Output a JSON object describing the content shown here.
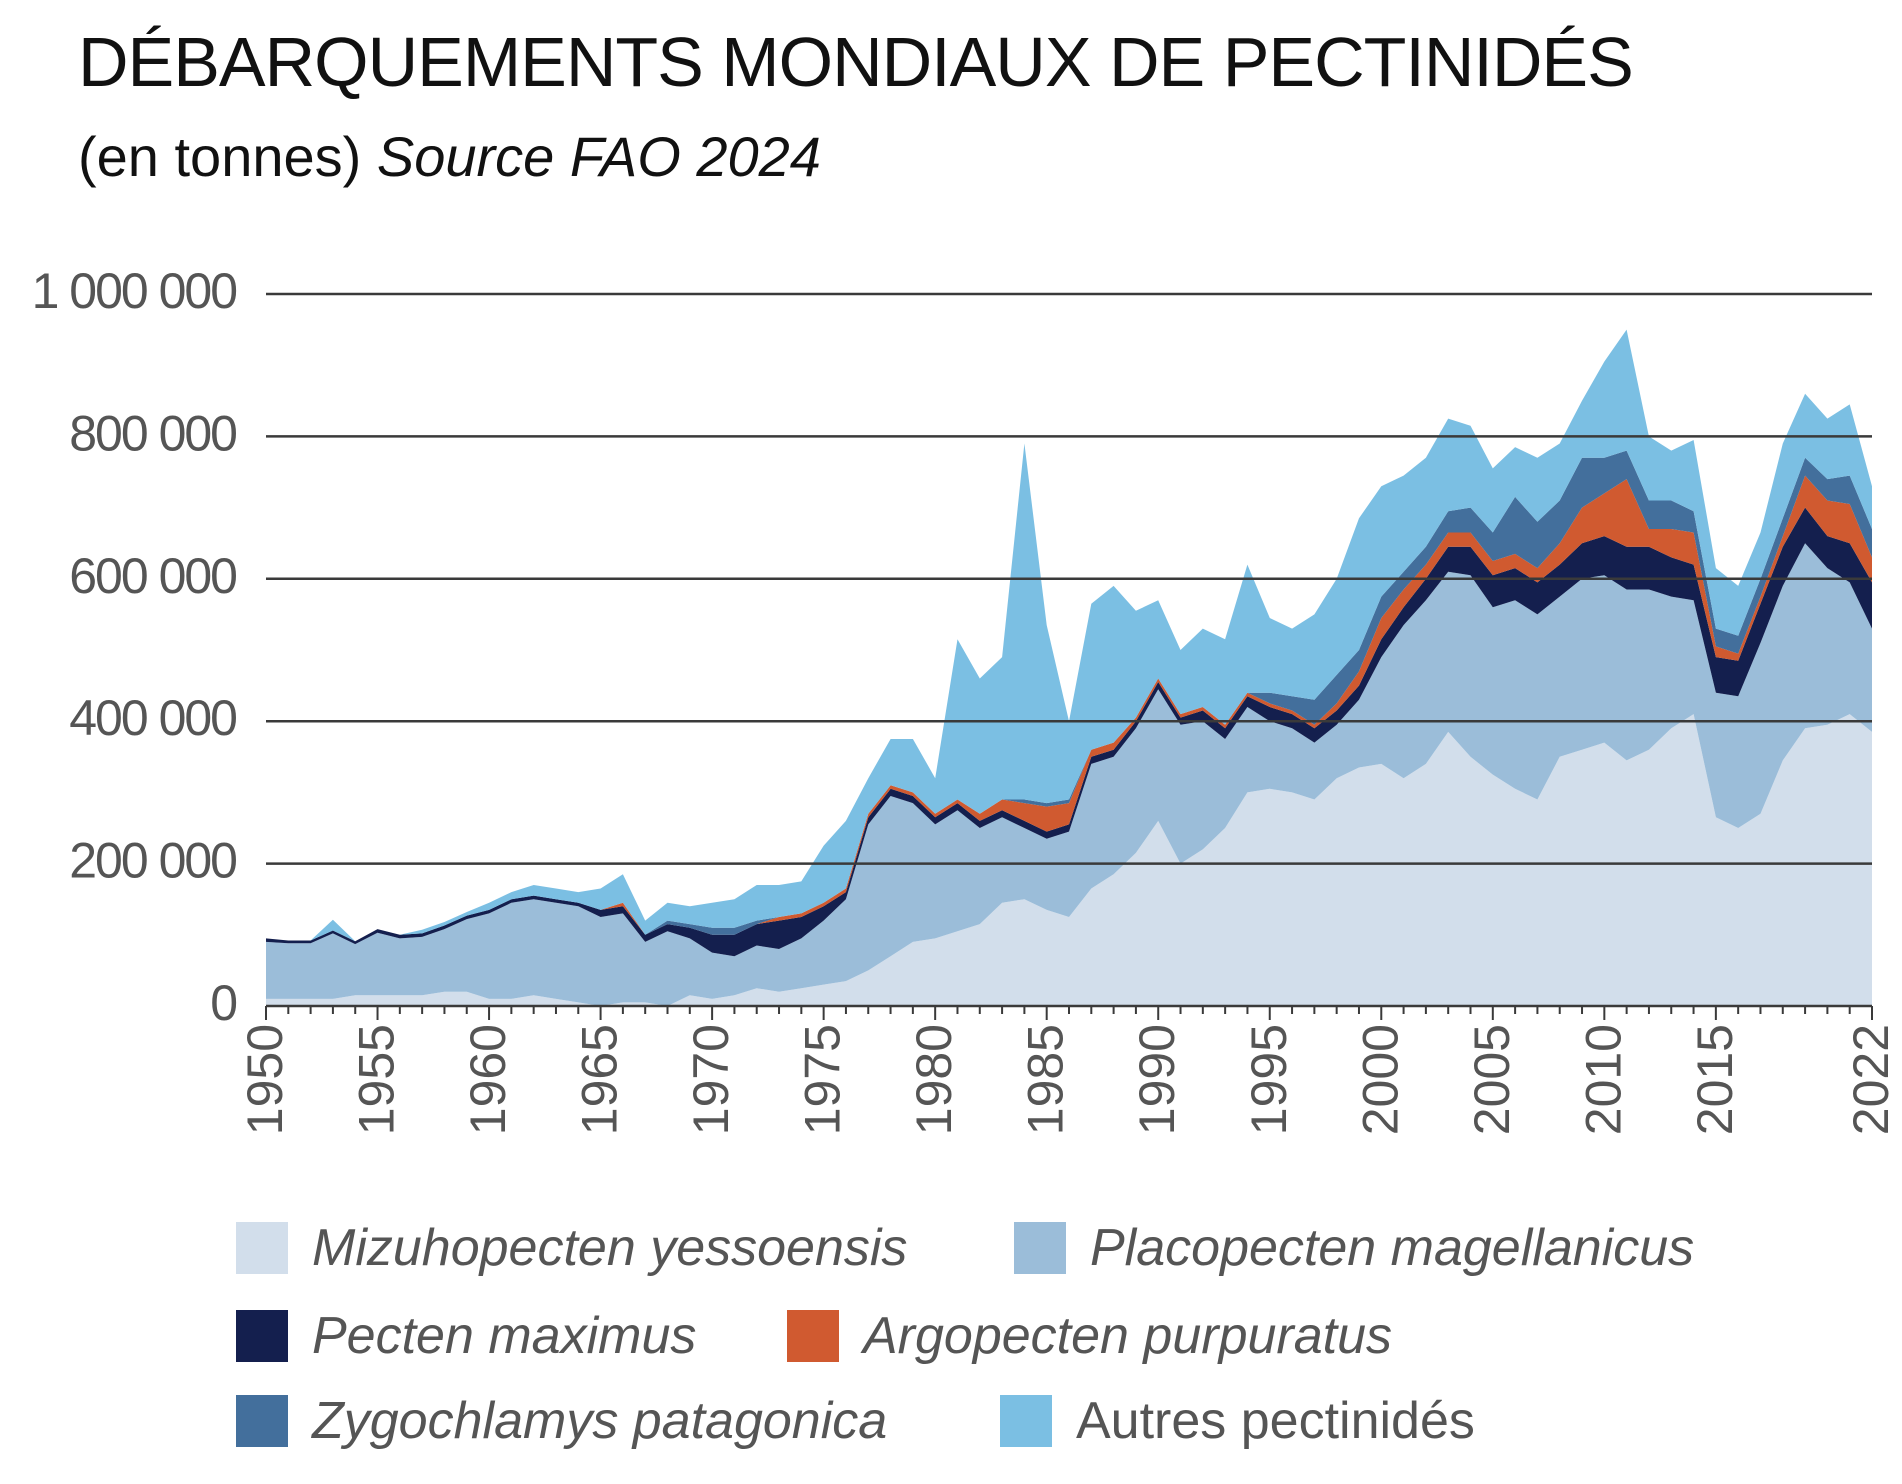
{
  "title": "DÉBARQUEMENTS MONDIAUX DE PECTINIDÉS",
  "subtitle": {
    "unit": "(en tonnes)",
    "source": "Source FAO 2024"
  },
  "chart_data": {
    "type": "area",
    "stacked": true,
    "grid": "horizontal",
    "legend_position": "bottom",
    "ylim": [
      0,
      1000000
    ],
    "y_ticks": [
      0,
      200000,
      400000,
      600000,
      800000,
      1000000
    ],
    "y_tick_labels": [
      "0",
      "200 000",
      "400 000",
      "600 000",
      "800 000",
      "1 000 000"
    ],
    "x_ticks": [
      1950,
      1955,
      1960,
      1965,
      1970,
      1975,
      1980,
      1985,
      1990,
      1995,
      2000,
      2005,
      2010,
      2015,
      2022
    ],
    "x_tick_labels": [
      "1950",
      "1955",
      "1960",
      "1965",
      "1970",
      "1975",
      "1980",
      "1985",
      "1990",
      "1995",
      "2000",
      "2005",
      "2010",
      "2015",
      "2022"
    ],
    "x": [
      1950,
      1951,
      1952,
      1953,
      1954,
      1955,
      1956,
      1957,
      1958,
      1959,
      1960,
      1961,
      1962,
      1963,
      1964,
      1965,
      1966,
      1967,
      1968,
      1969,
      1970,
      1971,
      1972,
      1973,
      1974,
      1975,
      1976,
      1977,
      1978,
      1979,
      1980,
      1981,
      1982,
      1983,
      1984,
      1985,
      1986,
      1987,
      1988,
      1989,
      1990,
      1991,
      1992,
      1993,
      1994,
      1995,
      1996,
      1997,
      1998,
      1999,
      2000,
      2001,
      2002,
      2003,
      2004,
      2005,
      2006,
      2007,
      2008,
      2009,
      2010,
      2011,
      2012,
      2013,
      2014,
      2015,
      2016,
      2017,
      2018,
      2019,
      2020,
      2021,
      2022
    ],
    "series": [
      {
        "name": "Mizuhopecten yessoensis",
        "color": "#d2deeb",
        "values": [
          10000,
          10000,
          10000,
          10000,
          15000,
          15000,
          15000,
          15000,
          20000,
          20000,
          10000,
          10000,
          15000,
          10000,
          5000,
          0,
          5000,
          5000,
          0,
          15000,
          10000,
          15000,
          25000,
          20000,
          25000,
          30000,
          35000,
          50000,
          70000,
          90000,
          95000,
          105000,
          115000,
          145000,
          150000,
          135000,
          125000,
          165000,
          185000,
          215000,
          260000,
          200000,
          220000,
          250000,
          300000,
          305000,
          300000,
          290000,
          320000,
          335000,
          340000,
          320000,
          340000,
          385000,
          350000,
          325000,
          305000,
          290000,
          350000,
          360000,
          370000,
          345000,
          360000,
          390000,
          410000,
          265000,
          250000,
          270000,
          345000,
          390000,
          395000,
          410000,
          385000
        ]
      },
      {
        "name": "Placopecten magellanicus",
        "color": "#9bbdd9",
        "values": [
          80000,
          78000,
          78000,
          92000,
          72000,
          88000,
          80000,
          82000,
          88000,
          102000,
          120000,
          135000,
          135000,
          135000,
          135000,
          125000,
          125000,
          85000,
          105000,
          80000,
          65000,
          55000,
          60000,
          60000,
          70000,
          90000,
          115000,
          205000,
          225000,
          195000,
          160000,
          170000,
          135000,
          120000,
          100000,
          100000,
          120000,
          175000,
          165000,
          175000,
          185000,
          195000,
          180000,
          125000,
          120000,
          95000,
          90000,
          80000,
          75000,
          95000,
          150000,
          215000,
          230000,
          225000,
          255000,
          235000,
          265000,
          260000,
          225000,
          240000,
          235000,
          240000,
          225000,
          185000,
          160000,
          175000,
          185000,
          240000,
          245000,
          260000,
          220000,
          185000,
          145000
        ]
      },
      {
        "name": "Pecten maximus",
        "color": "#141f4e",
        "values": [
          5000,
          4000,
          4000,
          4000,
          4000,
          5000,
          5000,
          5000,
          5000,
          5000,
          5000,
          5000,
          5000,
          5000,
          5000,
          10000,
          10000,
          10000,
          10000,
          15000,
          25000,
          30000,
          30000,
          40000,
          30000,
          20000,
          10000,
          10000,
          10000,
          10000,
          10000,
          10000,
          10000,
          10000,
          10000,
          10000,
          10000,
          10000,
          10000,
          10000,
          10000,
          10000,
          15000,
          15000,
          15000,
          20000,
          20000,
          20000,
          20000,
          20000,
          25000,
          25000,
          30000,
          35000,
          40000,
          45000,
          45000,
          45000,
          45000,
          50000,
          55000,
          60000,
          60000,
          55000,
          50000,
          50000,
          50000,
          55000,
          55000,
          50000,
          45000,
          55000,
          65000
        ]
      },
      {
        "name": "Argopecten purpuratus",
        "color": "#d05a30",
        "values": [
          0,
          0,
          0,
          0,
          0,
          0,
          0,
          0,
          0,
          0,
          0,
          0,
          0,
          0,
          0,
          0,
          5000,
          0,
          0,
          0,
          0,
          0,
          0,
          5000,
          5000,
          5000,
          5000,
          5000,
          5000,
          5000,
          5000,
          5000,
          10000,
          15000,
          25000,
          35000,
          30000,
          10000,
          10000,
          5000,
          5000,
          5000,
          5000,
          5000,
          5000,
          5000,
          5000,
          5000,
          10000,
          20000,
          30000,
          25000,
          20000,
          20000,
          20000,
          20000,
          20000,
          20000,
          30000,
          50000,
          60000,
          95000,
          25000,
          40000,
          45000,
          15000,
          10000,
          10000,
          15000,
          45000,
          50000,
          55000,
          35000
        ]
      },
      {
        "name": "Zygochlamys patagonica",
        "color": "#436f9c",
        "values": [
          0,
          0,
          0,
          0,
          0,
          0,
          0,
          0,
          0,
          0,
          0,
          0,
          0,
          0,
          0,
          0,
          0,
          0,
          5000,
          5000,
          10000,
          10000,
          5000,
          0,
          0,
          0,
          0,
          0,
          0,
          0,
          0,
          0,
          0,
          0,
          5000,
          5000,
          5000,
          0,
          0,
          0,
          0,
          0,
          0,
          0,
          0,
          15000,
          20000,
          35000,
          40000,
          30000,
          30000,
          25000,
          25000,
          30000,
          35000,
          40000,
          80000,
          65000,
          60000,
          70000,
          50000,
          40000,
          40000,
          40000,
          30000,
          25000,
          25000,
          25000,
          25000,
          25000,
          30000,
          40000,
          40000
        ]
      },
      {
        "name": "Autres pectinidés",
        "color": "#7bbfe3",
        "values": [
          0,
          0,
          0,
          15000,
          0,
          0,
          0,
          5000,
          5000,
          5000,
          10000,
          10000,
          15000,
          15000,
          15000,
          30000,
          40000,
          20000,
          25000,
          25000,
          35000,
          40000,
          50000,
          45000,
          45000,
          80000,
          95000,
          50000,
          65000,
          75000,
          50000,
          225000,
          190000,
          200000,
          500000,
          250000,
          110000,
          205000,
          220000,
          150000,
          110000,
          90000,
          110000,
          120000,
          180000,
          105000,
          95000,
          120000,
          135000,
          185000,
          155000,
          135000,
          125000,
          130000,
          115000,
          90000,
          70000,
          90000,
          80000,
          80000,
          135000,
          170000,
          90000,
          70000,
          100000,
          85000,
          70000,
          65000,
          105000,
          90000,
          85000,
          100000,
          60000
        ]
      }
    ]
  }
}
